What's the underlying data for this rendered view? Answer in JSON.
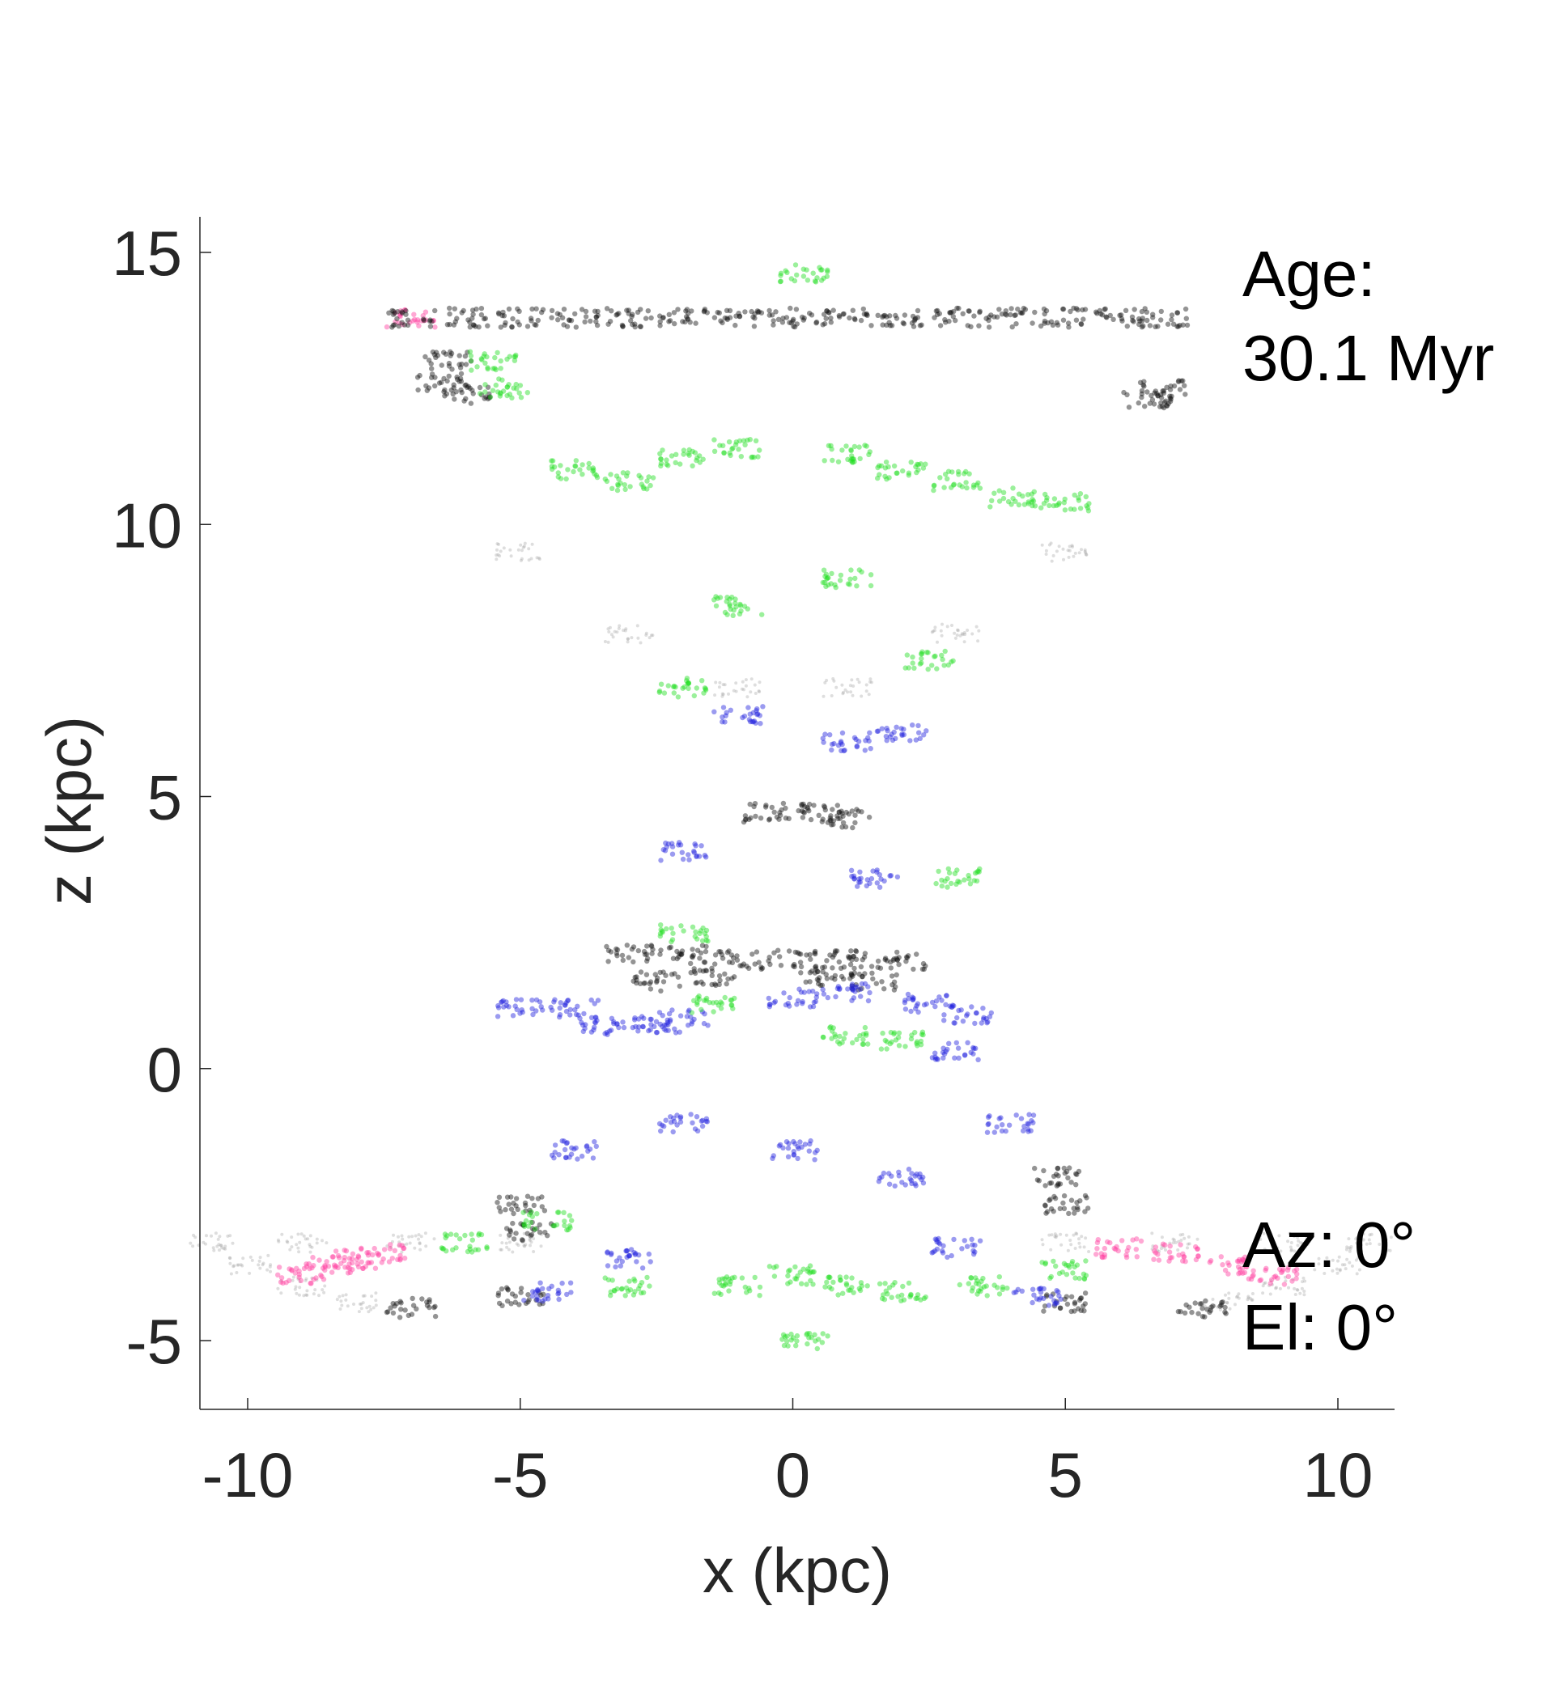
{
  "chart_data": {
    "type": "scatter",
    "title": "",
    "xlabel": "x (kpc)",
    "ylabel": "z (kpc)",
    "xlim": [
      -10.9,
      11
    ],
    "ylim": [
      -6.3,
      15.7
    ],
    "xticks": [
      -10,
      -5,
      0,
      5,
      10
    ],
    "yticks": [
      -5,
      0,
      5,
      10,
      15
    ],
    "xtick_labels": [
      "-10",
      "-5",
      "0",
      "5",
      "10"
    ],
    "ytick_labels": [
      "-5",
      "0",
      "5",
      "10",
      "15"
    ],
    "grid": false,
    "legend": "none",
    "annotations": {
      "age_label": "Age:",
      "age_value": "30.1 Myr",
      "az_label": "Az: 0°",
      "el_label": "El: 0°"
    },
    "series_colors": {
      "gray": "#a0a0a0",
      "black": "#111111",
      "green": "#22dd22",
      "blue": "#2222dd",
      "pink": "#ff3fa0"
    },
    "series": [
      {
        "color": "#111111",
        "description_points": [
          [
            -7.0,
            13.8
          ],
          [
            -6.0,
            13.8
          ],
          [
            -5.0,
            13.8
          ],
          [
            -4.0,
            13.8
          ],
          [
            -3.0,
            13.8
          ],
          [
            -2.0,
            13.8
          ],
          [
            -1.0,
            13.8
          ],
          [
            0.0,
            13.8
          ],
          [
            1.0,
            13.8
          ],
          [
            2.0,
            13.8
          ],
          [
            3.0,
            13.8
          ],
          [
            4.0,
            13.8
          ],
          [
            5.0,
            13.8
          ],
          [
            6.0,
            13.8
          ],
          [
            6.8,
            13.8
          ],
          [
            -6.5,
            12.6
          ],
          [
            -6.3,
            13.0
          ],
          [
            -6.0,
            12.4
          ],
          [
            6.5,
            12.3
          ],
          [
            6.8,
            12.5
          ],
          [
            -3.0,
            2.1
          ],
          [
            -2.0,
            2.1
          ],
          [
            -1.0,
            2.0
          ],
          [
            0.0,
            2.0
          ],
          [
            1.0,
            2.0
          ],
          [
            2.0,
            2.0
          ],
          [
            -2.5,
            1.6
          ],
          [
            -1.5,
            1.7
          ],
          [
            0.5,
            1.7
          ],
          [
            1.5,
            1.6
          ],
          [
            -0.5,
            4.7
          ],
          [
            0.5,
            4.7
          ],
          [
            1.0,
            4.6
          ],
          [
            -5.0,
            -2.5
          ],
          [
            -4.8,
            -3.0
          ],
          [
            5.0,
            -2.5
          ],
          [
            4.8,
            -2.0
          ],
          [
            -7.0,
            -4.4
          ],
          [
            -5.0,
            -4.2
          ],
          [
            5.0,
            -4.3
          ],
          [
            7.5,
            -4.4
          ]
        ]
      },
      {
        "color": "#22dd22",
        "description_points": [
          [
            -5.5,
            13.0
          ],
          [
            -5.3,
            12.5
          ],
          [
            -4.0,
            11.0
          ],
          [
            -3.0,
            10.8
          ],
          [
            -2.0,
            11.2
          ],
          [
            -1.0,
            11.4
          ],
          [
            1.0,
            11.3
          ],
          [
            2.0,
            11.0
          ],
          [
            3.0,
            10.8
          ],
          [
            4.0,
            10.5
          ],
          [
            5.0,
            10.4
          ],
          [
            -1.0,
            8.5
          ],
          [
            1.0,
            9.0
          ],
          [
            2.5,
            7.5
          ],
          [
            -2.0,
            7.0
          ],
          [
            1.0,
            0.6
          ],
          [
            2.0,
            0.5
          ],
          [
            -1.5,
            1.2
          ],
          [
            3.0,
            3.5
          ],
          [
            -2.0,
            2.5
          ],
          [
            -6.0,
            -3.2
          ],
          [
            -4.5,
            -2.8
          ],
          [
            -3.0,
            -4.0
          ],
          [
            -1.0,
            -4.0
          ],
          [
            0.0,
            -3.8
          ],
          [
            1.0,
            -4.0
          ],
          [
            2.0,
            -4.1
          ],
          [
            3.5,
            -4.0
          ],
          [
            5.0,
            -3.7
          ],
          [
            0.2,
            -5.0
          ],
          [
            0.2,
            14.6
          ]
        ]
      },
      {
        "color": "#2222dd",
        "description_points": [
          [
            -5.0,
            1.1
          ],
          [
            -4.0,
            1.1
          ],
          [
            -3.5,
            0.8
          ],
          [
            -2.5,
            0.8
          ],
          [
            -2.0,
            0.9
          ],
          [
            0.0,
            1.3
          ],
          [
            1.0,
            1.4
          ],
          [
            2.5,
            1.2
          ],
          [
            3.2,
            1.0
          ],
          [
            3.0,
            0.3
          ],
          [
            -1.0,
            6.5
          ],
          [
            1.0,
            6.0
          ],
          [
            2.0,
            6.2
          ],
          [
            -2.0,
            4.0
          ],
          [
            1.5,
            3.5
          ],
          [
            -4.0,
            -1.5
          ],
          [
            -2.0,
            -1.0
          ],
          [
            0.0,
            -1.5
          ],
          [
            2.0,
            -2.0
          ],
          [
            4.0,
            -1.0
          ],
          [
            -3.0,
            -3.5
          ],
          [
            3.0,
            -3.3
          ],
          [
            -4.5,
            -4.1
          ],
          [
            4.5,
            -4.2
          ]
        ]
      },
      {
        "color": "#ff3fa0",
        "description_points": [
          [
            -9.0,
            -3.8
          ],
          [
            -8.5,
            -3.6
          ],
          [
            -8.0,
            -3.5
          ],
          [
            -7.5,
            -3.4
          ],
          [
            6.0,
            -3.3
          ],
          [
            7.0,
            -3.4
          ],
          [
            8.0,
            -3.6
          ],
          [
            8.8,
            -3.8
          ],
          [
            -7.0,
            13.8
          ]
        ]
      },
      {
        "color": "#a0a0a0",
        "description_points": [
          [
            -10.7,
            -3.2
          ],
          [
            -9.0,
            -3.2
          ],
          [
            -7.0,
            -3.2
          ],
          [
            -5.0,
            -3.2
          ],
          [
            5.0,
            -3.2
          ],
          [
            7.0,
            -3.2
          ],
          [
            9.0,
            -3.2
          ],
          [
            10.6,
            -3.2
          ],
          [
            -10.0,
            -3.6
          ],
          [
            -9.0,
            -4.0
          ],
          [
            -8.0,
            -4.3
          ],
          [
            8.0,
            -4.3
          ],
          [
            9.0,
            -4.0
          ],
          [
            10.0,
            -3.6
          ],
          [
            -5.0,
            9.5
          ],
          [
            -3.0,
            8.0
          ],
          [
            -1.0,
            7.0
          ],
          [
            1.0,
            7.0
          ],
          [
            3.0,
            8.0
          ],
          [
            5.0,
            9.5
          ]
        ]
      }
    ]
  }
}
